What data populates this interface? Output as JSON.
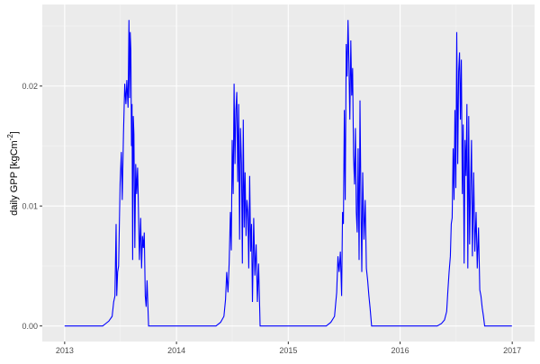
{
  "chart_data": {
    "type": "line",
    "title": "",
    "xlabel": "",
    "ylabel": "daily GPP [kgCm",
    "ylabel_sup": "-2",
    "ylabel_end": "]",
    "xlim": [
      "2012-10-20",
      "2017-03-15"
    ],
    "ylim": [
      -0.0013,
      0.0268
    ],
    "x_ticks": [
      "2013",
      "2014",
      "2015",
      "2016",
      "2017"
    ],
    "y_ticks": [
      "0.00",
      "0.01",
      "0.02"
    ],
    "y_tick_values": [
      0,
      0.01,
      0.02
    ],
    "grid": true,
    "line_color": "#0000FF",
    "panel_background": "#EBEBEB",
    "series": [
      {
        "x": [
          "2013-01-01",
          "2013-05-05",
          "2013-05-15",
          "2013-05-25",
          "2013-06-05",
          "2013-06-10",
          "2013-06-14",
          "2013-06-18",
          "2013-06-20",
          "2013-06-23",
          "2013-06-26",
          "2013-07-01",
          "2013-07-05",
          "2013-07-08",
          "2013-07-12",
          "2013-07-16",
          "2013-07-20",
          "2013-07-23",
          "2013-07-27",
          "2013-07-30",
          "2013-08-01",
          "2013-08-03",
          "2013-08-05",
          "2013-08-07",
          "2013-08-09",
          "2013-08-11",
          "2013-08-13",
          "2013-08-15",
          "2013-08-18",
          "2013-08-21",
          "2013-08-24",
          "2013-08-27",
          "2013-08-30",
          "2013-09-02",
          "2013-09-06",
          "2013-09-09",
          "2013-09-12",
          "2013-09-15",
          "2013-09-18",
          "2013-09-21",
          "2013-09-24",
          "2013-09-27",
          "2013-09-30",
          "2013-10-02",
          "2014-05-10",
          "2014-05-25",
          "2014-06-05",
          "2014-06-10",
          "2014-06-14",
          "2014-06-18",
          "2014-06-22",
          "2014-06-26",
          "2014-06-29",
          "2014-07-02",
          "2014-07-05",
          "2014-07-08",
          "2014-07-11",
          "2014-07-14",
          "2014-07-17",
          "2014-07-20",
          "2014-07-23",
          "2014-07-26",
          "2014-07-29",
          "2014-08-01",
          "2014-08-04",
          "2014-08-07",
          "2014-08-10",
          "2014-08-13",
          "2014-08-16",
          "2014-08-19",
          "2014-08-22",
          "2014-08-25",
          "2014-08-28",
          "2014-08-31",
          "2014-09-03",
          "2014-09-06",
          "2014-09-10",
          "2014-09-14",
          "2014-09-18",
          "2014-09-22",
          "2014-09-26",
          "2014-09-30",
          "2014-10-01",
          "2015-05-05",
          "2015-05-20",
          "2015-06-01",
          "2015-06-08",
          "2015-06-12",
          "2015-06-16",
          "2015-06-20",
          "2015-06-24",
          "2015-06-27",
          "2015-06-30",
          "2015-07-03",
          "2015-07-06",
          "2015-07-09",
          "2015-07-12",
          "2015-07-15",
          "2015-07-18",
          "2015-07-21",
          "2015-07-24",
          "2015-07-27",
          "2015-07-30",
          "2015-08-02",
          "2015-08-05",
          "2015-08-08",
          "2015-08-11",
          "2015-08-14",
          "2015-08-17",
          "2015-08-20",
          "2015-08-23",
          "2015-08-26",
          "2015-08-29",
          "2015-09-01",
          "2015-09-05",
          "2015-09-09",
          "2015-09-13",
          "2015-09-17",
          "2015-09-21",
          "2015-09-25",
          "2015-09-30",
          "2016-05-01",
          "2016-05-15",
          "2016-05-25",
          "2016-06-01",
          "2016-06-05",
          "2016-06-09",
          "2016-06-13",
          "2016-06-16",
          "2016-06-19",
          "2016-06-22",
          "2016-06-25",
          "2016-06-28",
          "2016-07-01",
          "2016-07-04",
          "2016-07-07",
          "2016-07-10",
          "2016-07-13",
          "2016-07-16",
          "2016-07-19",
          "2016-07-22",
          "2016-07-25",
          "2016-07-28",
          "2016-07-31",
          "2016-08-03",
          "2016-08-06",
          "2016-08-09",
          "2016-08-12",
          "2016-08-15",
          "2016-08-18",
          "2016-08-21",
          "2016-08-24",
          "2016-08-28",
          "2016-09-01",
          "2016-09-05",
          "2016-09-09",
          "2016-09-13",
          "2016-09-17",
          "2016-09-21",
          "2016-09-25",
          "2016-09-29",
          "2016-10-03",
          "2016-12-31"
        ],
        "values": [
          0,
          0,
          0.0002,
          0.0004,
          0.0008,
          0.002,
          0.0025,
          0.0085,
          0.0025,
          0.0045,
          0.005,
          0.012,
          0.0145,
          0.0105,
          0.016,
          0.0202,
          0.0185,
          0.0205,
          0.0182,
          0.0255,
          0.019,
          0.0245,
          0.023,
          0.015,
          0.0185,
          0.0055,
          0.0175,
          0.016,
          0.0065,
          0.0135,
          0.011,
          0.0132,
          0.0095,
          0.0055,
          0.009,
          0.0048,
          0.0075,
          0.0065,
          0.0078,
          0.0025,
          0.0016,
          0.0038,
          0.0015,
          0,
          0,
          0.0003,
          0.0008,
          0.0022,
          0.0045,
          0.0028,
          0.0052,
          0.0095,
          0.0063,
          0.0155,
          0.011,
          0.0202,
          0.0135,
          0.018,
          0.0195,
          0.012,
          0.0185,
          0.0072,
          0.0165,
          0.0135,
          0.0052,
          0.0172,
          0.0082,
          0.0128,
          0.0075,
          0.0105,
          0.0095,
          0.0048,
          0.0125,
          0.0062,
          0.0085,
          0.002,
          0.009,
          0.0042,
          0.0068,
          0.002,
          0.0052,
          0.001,
          0,
          0,
          0.0003,
          0.0008,
          0.0028,
          0.0058,
          0.0045,
          0.0062,
          0.0025,
          0.0095,
          0.0085,
          0.018,
          0.0105,
          0.0235,
          0.0208,
          0.0255,
          0.022,
          0.0172,
          0.0238,
          0.0192,
          0.0215,
          0.0142,
          0.0118,
          0.0165,
          0.0095,
          0.0078,
          0.0148,
          0.0055,
          0.0188,
          0.0108,
          0.0045,
          0.0128,
          0.0072,
          0.0105,
          0.0048,
          0.0038,
          0.0025,
          0.0015,
          0,
          0,
          0.0002,
          0.0005,
          0.0012,
          0.003,
          0.0045,
          0.0058,
          0.0085,
          0.009,
          0.0148,
          0.0105,
          0.018,
          0.0115,
          0.0245,
          0.0135,
          0.0212,
          0.0228,
          0.0172,
          0.0222,
          0.011,
          0.0168,
          0.0052,
          0.0155,
          0.0125,
          0.0185,
          0.0048,
          0.0175,
          0.0068,
          0.0118,
          0.0155,
          0.0058,
          0.0128,
          0.0062,
          0.0095,
          0.0048,
          0.0082,
          0.003,
          0.0025,
          0.0015,
          0.0008,
          0,
          0
        ]
      }
    ]
  }
}
